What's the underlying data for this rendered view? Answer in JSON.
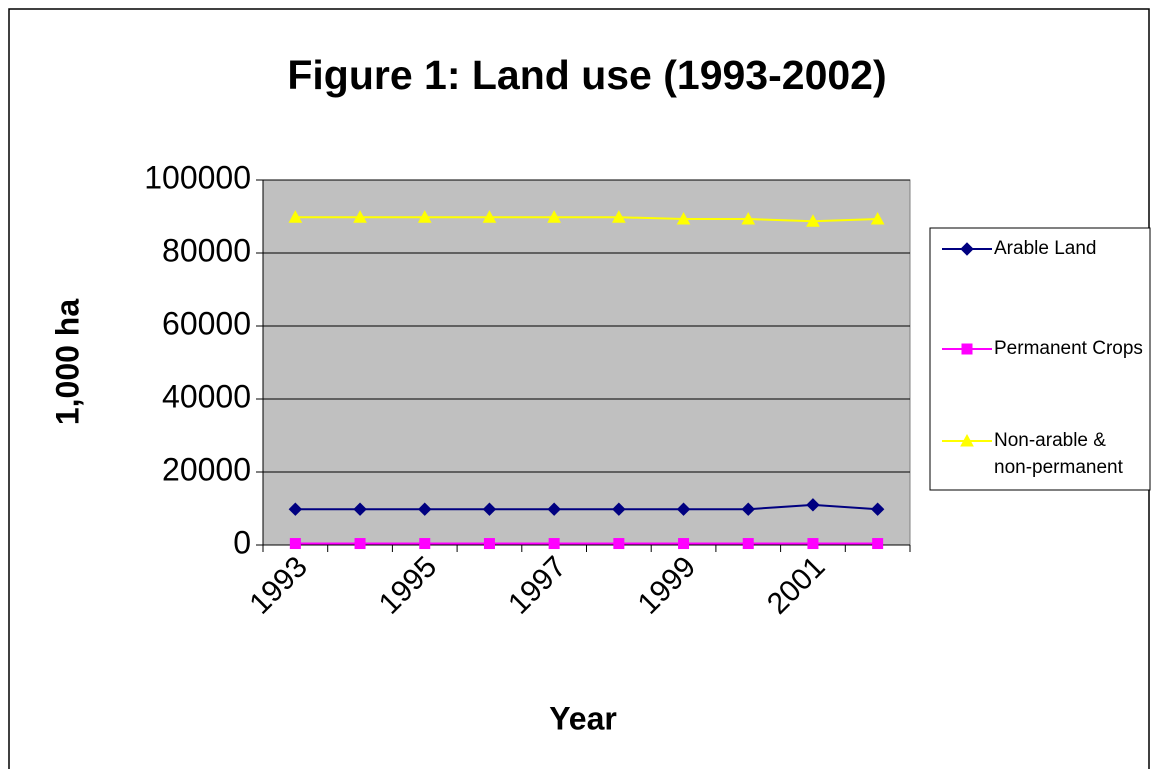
{
  "chart_data": {
    "type": "line",
    "title": "Figure 1:  Land use (1993-2002)",
    "x_label": "Year",
    "y_label": "1,000 ha",
    "categories": [
      "1993",
      null,
      "1995",
      null,
      "1997",
      null,
      "1999",
      null,
      "2001",
      null
    ],
    "series": [
      {
        "name": "Arable Land",
        "color": "#000080",
        "marker": "diamond",
        "values": [
          9800,
          9800,
          9800,
          9800,
          9800,
          9800,
          9800,
          9800,
          11000,
          9800
        ]
      },
      {
        "name": "Permanent Crops",
        "color": "#ff00ff",
        "marker": "square",
        "values": [
          400,
          400,
          400,
          400,
          400,
          400,
          400,
          400,
          400,
          400
        ]
      },
      {
        "name": "Non-arable & non-permanent",
        "color": "#ffff00",
        "marker": "triangle",
        "values": [
          89800,
          89800,
          89800,
          89800,
          89800,
          89800,
          89300,
          89300,
          88700,
          89300
        ]
      }
    ],
    "ylim": [
      0,
      100000
    ],
    "yticks": [
      0,
      20000,
      40000,
      60000,
      80000,
      100000
    ],
    "grid": true,
    "plot_background": "#c0c0c0",
    "legend": "right"
  }
}
